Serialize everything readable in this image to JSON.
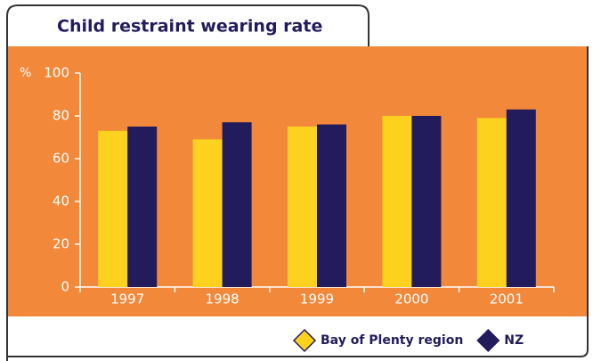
{
  "chart_data": {
    "type": "bar",
    "title": "Child restraint wearing rate",
    "y_unit": "%",
    "categories": [
      "1997",
      "1998",
      "1999",
      "2000",
      "2001"
    ],
    "series": [
      {
        "name": "Bay of Plenty region",
        "color": "#fdd21f",
        "values": [
          73,
          69,
          75,
          80,
          79
        ]
      },
      {
        "name": "NZ",
        "color": "#231c5c",
        "values": [
          75,
          77,
          76,
          80,
          83
        ]
      }
    ],
    "ylim": [
      0,
      100
    ],
    "yticks": [
      0,
      20,
      40,
      60,
      80,
      100
    ],
    "legend": "bottom-right"
  }
}
